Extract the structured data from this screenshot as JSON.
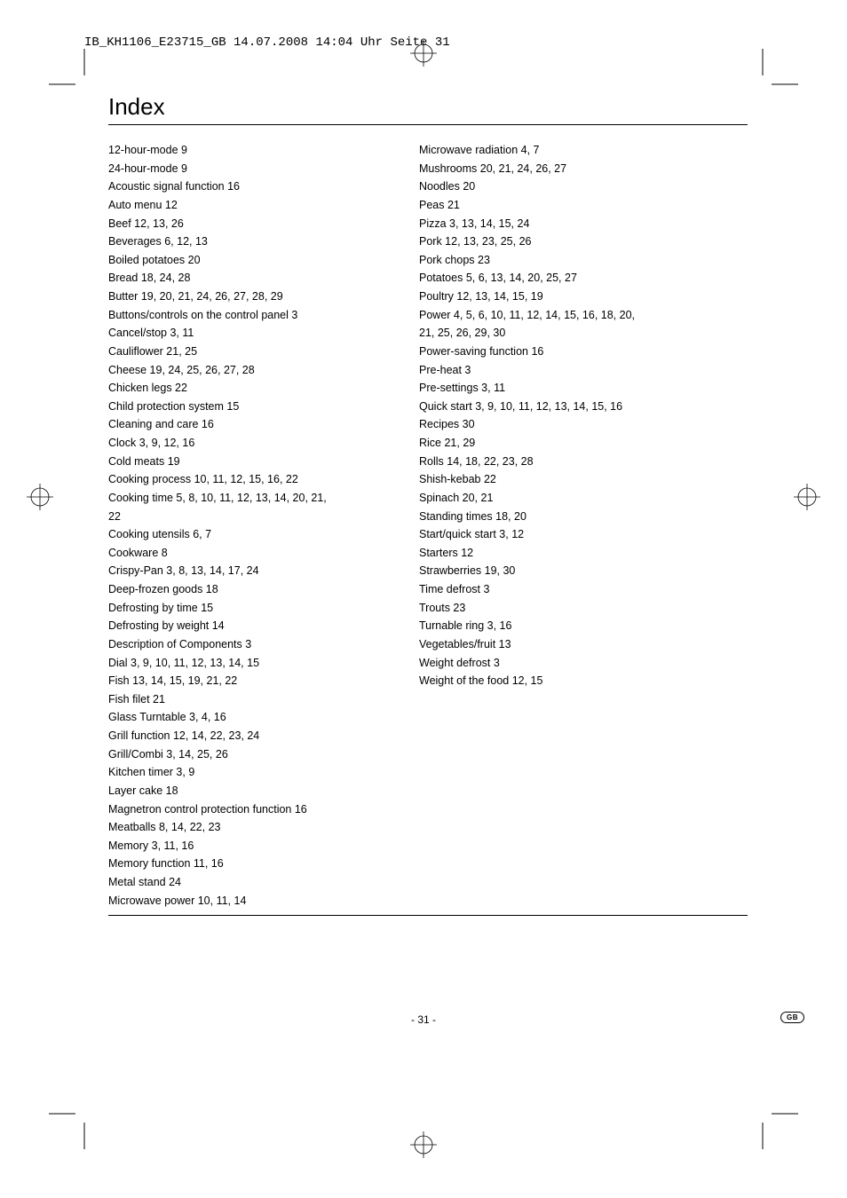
{
  "header_text": "IB_KH1106_E23715_GB  14.07.2008  14:04 Uhr  Seite 31",
  "title": "Index",
  "page_number": "- 31 -",
  "badge": "GB",
  "left_entries": [
    "12-hour-mode 9",
    "24-hour-mode 9",
    "Acoustic signal function 16",
    "Auto menu 12",
    "Beef 12, 13, 26",
    "Beverages 6, 12, 13",
    "Boiled potatoes 20",
    "Bread 18, 24, 28",
    "Butter 19, 20, 21, 24, 26, 27, 28, 29",
    "Buttons/controls on the control panel 3",
    "Cancel/stop 3, 11",
    "Cauliflower 21, 25",
    "Cheese 19, 24, 25, 26, 27, 28",
    "Chicken legs 22",
    "Child protection system 15",
    "Cleaning and care 16",
    "Clock 3, 9, 12, 16",
    "Cold meats 19",
    "Cooking process 10, 11, 12, 15, 16, 22",
    "Cooking time 5, 8, 10, 11, 12, 13, 14, 20, 21,",
    "22",
    "Cooking utensils 6, 7",
    "Cookware 8",
    "Crispy-Pan 3, 8, 13, 14, 17, 24",
    "Deep-frozen goods 18",
    "Defrosting by time 15",
    "Defrosting by weight 14",
    "Description of Components 3",
    "Dial 3, 9, 10, 11, 12, 13, 14, 15",
    "Fish 13, 14, 15, 19, 21, 22",
    "Fish filet 21",
    "Glass Turntable 3, 4, 16",
    "Grill function 12, 14, 22, 23, 24",
    "Grill/Combi 3, 14, 25, 26",
    "Kitchen timer 3, 9",
    "Layer cake 18",
    "Magnetron control protection function 16",
    "Meatballs 8, 14, 22, 23",
    "Memory 3, 11, 16",
    "Memory function 11, 16",
    "Metal stand 24",
    "Microwave power 10, 11, 14"
  ],
  "right_entries": [
    "Microwave radiation 4, 7",
    "Mushrooms 20, 21, 24, 26, 27",
    "Noodles 20",
    "Peas 21",
    "Pizza 3, 13, 14, 15, 24",
    "Pork 12, 13, 23, 25, 26",
    "Pork chops 23",
    "Potatoes 5, 6, 13, 14, 20, 25, 27",
    "Poultry 12, 13, 14, 15, 19",
    "Power 4, 5, 6, 10, 11, 12, 14, 15, 16, 18, 20,",
    "21, 25, 26, 29, 30",
    "Power-saving function 16",
    "Pre-heat 3",
    "Pre-settings 3, 11",
    "Quick start 3, 9, 10, 11, 12, 13, 14, 15, 16",
    "Recipes 30",
    "Rice 21, 29",
    "Rolls 14, 18, 22, 23, 28",
    "Shish-kebab 22",
    "Spinach 20, 21",
    "Standing times 18, 20",
    "Start/quick start 3, 12",
    "Starters 12",
    "Strawberries 19, 30",
    "Time defrost 3",
    "Trouts 23",
    "Turnable ring 3, 16",
    "Vegetables/fruit 13",
    "Weight defrost 3",
    "Weight of the food 12, 15"
  ]
}
